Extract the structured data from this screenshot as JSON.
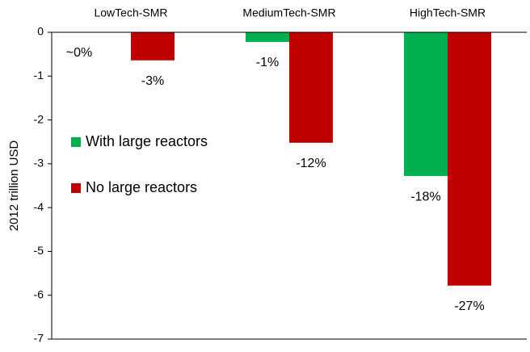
{
  "chart_data": {
    "type": "bar",
    "categories": [
      "LowTech-SMR",
      "MediumTech-SMR",
      "HighTech-SMR"
    ],
    "y_label": "2012 trillion USD",
    "series": [
      {
        "name": "With large reactors",
        "color": "#00b050",
        "values": [
          0,
          -0.22,
          -3.28
        ],
        "percent_labels": [
          "~0%",
          "-1%",
          "-18%"
        ]
      },
      {
        "name": "No large reactors",
        "color": "#c00000",
        "values": [
          -0.64,
          -2.52,
          -5.78
        ],
        "percent_labels": [
          "-3%",
          "-12%",
          "-27%"
        ]
      }
    ],
    "ylim": [
      -7,
      0
    ],
    "yticks": [
      0,
      -1,
      -2,
      -3,
      -4,
      -5,
      -6,
      -7
    ],
    "grid": false
  }
}
